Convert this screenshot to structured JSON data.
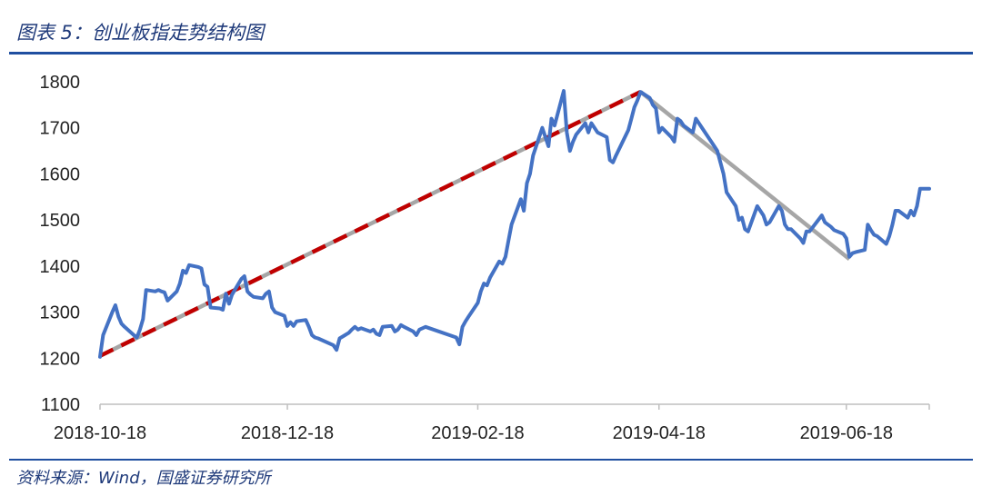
{
  "header": {
    "title": "图表 5：创业板指走势结构图"
  },
  "footer": {
    "source": "资料来源：Wind，国盛证券研究所"
  },
  "colors": {
    "series": "#4472c4",
    "trend_up": "#c00000",
    "trend_overlay": "#a6a6a6",
    "trend_down": "#a6a6a6",
    "rule": "#1f4fa0"
  },
  "chart_data": {
    "type": "line",
    "title": "",
    "xlabel": "",
    "ylabel": "",
    "ylim": [
      1100,
      1800
    ],
    "yticks": [
      1100,
      1200,
      1300,
      1400,
      1500,
      1600,
      1700,
      1800
    ],
    "xticks": [
      "2018-10-18",
      "2018-12-18",
      "2019-02-18",
      "2019-04-18",
      "2019-06-18"
    ],
    "xlim": [
      "2018-10-18",
      "2019-07-15"
    ],
    "grid": false,
    "legend": "none",
    "series": [
      {
        "values": [
          [
            "2018-10-18",
            1203
          ],
          [
            "2018-10-19",
            1250
          ],
          [
            "2018-10-22",
            1300
          ],
          [
            "2018-10-23",
            1315
          ],
          [
            "2018-10-24",
            1290
          ],
          [
            "2018-10-25",
            1275
          ],
          [
            "2018-10-26",
            1268
          ],
          [
            "2018-10-29",
            1250
          ],
          [
            "2018-10-30",
            1245
          ],
          [
            "2018-10-31",
            1262
          ],
          [
            "2018-11-01",
            1285
          ],
          [
            "2018-11-02",
            1348
          ],
          [
            "2018-11-05",
            1345
          ],
          [
            "2018-11-06",
            1348
          ],
          [
            "2018-11-07",
            1345
          ],
          [
            "2018-11-08",
            1343
          ],
          [
            "2018-11-09",
            1325
          ],
          [
            "2018-11-12",
            1345
          ],
          [
            "2018-11-13",
            1362
          ],
          [
            "2018-11-14",
            1390
          ],
          [
            "2018-11-15",
            1385
          ],
          [
            "2018-11-16",
            1402
          ],
          [
            "2018-11-19",
            1398
          ],
          [
            "2018-11-20",
            1395
          ],
          [
            "2018-11-21",
            1360
          ],
          [
            "2018-11-22",
            1355
          ],
          [
            "2018-11-23",
            1310
          ],
          [
            "2018-11-26",
            1308
          ],
          [
            "2018-11-27",
            1305
          ],
          [
            "2018-11-28",
            1340
          ],
          [
            "2018-11-29",
            1318
          ],
          [
            "2018-11-30",
            1338
          ],
          [
            "2018-12-03",
            1372
          ],
          [
            "2018-12-04",
            1378
          ],
          [
            "2018-12-05",
            1345
          ],
          [
            "2018-12-06",
            1338
          ],
          [
            "2018-12-07",
            1333
          ],
          [
            "2018-12-10",
            1330
          ],
          [
            "2018-12-11",
            1340
          ],
          [
            "2018-12-12",
            1345
          ],
          [
            "2018-12-13",
            1310
          ],
          [
            "2018-12-14",
            1300
          ],
          [
            "2018-12-17",
            1292
          ],
          [
            "2018-12-18",
            1270
          ],
          [
            "2018-12-19",
            1278
          ],
          [
            "2018-12-20",
            1270
          ],
          [
            "2018-12-21",
            1280
          ],
          [
            "2018-12-24",
            1283
          ],
          [
            "2018-12-25",
            1268
          ],
          [
            "2018-12-26",
            1250
          ],
          [
            "2018-12-27",
            1245
          ],
          [
            "2018-12-28",
            1243
          ],
          [
            "2019-01-02",
            1228
          ],
          [
            "2019-01-03",
            1218
          ],
          [
            "2019-01-04",
            1243
          ],
          [
            "2019-01-07",
            1255
          ],
          [
            "2019-01-08",
            1262
          ],
          [
            "2019-01-09",
            1268
          ],
          [
            "2019-01-10",
            1262
          ],
          [
            "2019-01-11",
            1265
          ],
          [
            "2019-01-14",
            1258
          ],
          [
            "2019-01-15",
            1262
          ],
          [
            "2019-01-16",
            1253
          ],
          [
            "2019-01-17",
            1250
          ],
          [
            "2019-01-18",
            1268
          ],
          [
            "2019-01-21",
            1270
          ],
          [
            "2019-01-22",
            1258
          ],
          [
            "2019-01-23",
            1262
          ],
          [
            "2019-01-24",
            1272
          ],
          [
            "2019-01-25",
            1268
          ],
          [
            "2019-01-28",
            1258
          ],
          [
            "2019-01-29",
            1250
          ],
          [
            "2019-01-30",
            1262
          ],
          [
            "2019-01-31",
            1265
          ],
          [
            "2019-02-01",
            1268
          ],
          [
            "2019-02-11",
            1245
          ],
          [
            "2019-02-12",
            1230
          ],
          [
            "2019-02-13",
            1268
          ],
          [
            "2019-02-14",
            1280
          ],
          [
            "2019-02-15",
            1290
          ],
          [
            "2019-02-18",
            1320
          ],
          [
            "2019-02-19",
            1345
          ],
          [
            "2019-02-20",
            1362
          ],
          [
            "2019-02-21",
            1358
          ],
          [
            "2019-02-22",
            1375
          ],
          [
            "2019-02-25",
            1410
          ],
          [
            "2019-02-26",
            1405
          ],
          [
            "2019-02-27",
            1420
          ],
          [
            "2019-02-28",
            1455
          ],
          [
            "2019-03-01",
            1490
          ],
          [
            "2019-03-04",
            1545
          ],
          [
            "2019-03-05",
            1520
          ],
          [
            "2019-03-06",
            1580
          ],
          [
            "2019-03-07",
            1600
          ],
          [
            "2019-03-08",
            1640
          ],
          [
            "2019-03-11",
            1700
          ],
          [
            "2019-03-12",
            1680
          ],
          [
            "2019-03-13",
            1660
          ],
          [
            "2019-03-14",
            1720
          ],
          [
            "2019-03-15",
            1705
          ],
          [
            "2019-03-18",
            1780
          ],
          [
            "2019-03-19",
            1690
          ],
          [
            "2019-03-20",
            1650
          ],
          [
            "2019-03-21",
            1670
          ],
          [
            "2019-03-22",
            1685
          ],
          [
            "2019-03-25",
            1710
          ],
          [
            "2019-03-26",
            1690
          ],
          [
            "2019-03-27",
            1710
          ],
          [
            "2019-03-28",
            1700
          ],
          [
            "2019-03-29",
            1690
          ],
          [
            "2019-04-01",
            1680
          ],
          [
            "2019-04-02",
            1630
          ],
          [
            "2019-04-03",
            1625
          ],
          [
            "2019-04-04",
            1640
          ],
          [
            "2019-04-08",
            1695
          ],
          [
            "2019-04-09",
            1720
          ],
          [
            "2019-04-10",
            1745
          ],
          [
            "2019-04-11",
            1760
          ],
          [
            "2019-04-12",
            1778
          ],
          [
            "2019-04-15",
            1765
          ],
          [
            "2019-04-16",
            1750
          ],
          [
            "2019-04-17",
            1742
          ],
          [
            "2019-04-18",
            1690
          ],
          [
            "2019-04-19",
            1700
          ],
          [
            "2019-04-22",
            1680
          ],
          [
            "2019-04-23",
            1670
          ],
          [
            "2019-04-24",
            1720
          ],
          [
            "2019-04-25",
            1715
          ],
          [
            "2019-04-26",
            1705
          ],
          [
            "2019-04-29",
            1690
          ],
          [
            "2019-04-30",
            1720
          ],
          [
            "2019-05-06",
            1660
          ],
          [
            "2019-05-07",
            1650
          ],
          [
            "2019-05-08",
            1625
          ],
          [
            "2019-05-09",
            1600
          ],
          [
            "2019-05-10",
            1560
          ],
          [
            "2019-05-13",
            1530
          ],
          [
            "2019-05-14",
            1500
          ],
          [
            "2019-05-15",
            1505
          ],
          [
            "2019-05-16",
            1480
          ],
          [
            "2019-05-17",
            1475
          ],
          [
            "2019-05-20",
            1530
          ],
          [
            "2019-05-21",
            1520
          ],
          [
            "2019-05-22",
            1510
          ],
          [
            "2019-05-23",
            1490
          ],
          [
            "2019-05-24",
            1495
          ],
          [
            "2019-05-27",
            1530
          ],
          [
            "2019-05-28",
            1520
          ],
          [
            "2019-05-29",
            1490
          ],
          [
            "2019-05-30",
            1480
          ],
          [
            "2019-05-31",
            1480
          ],
          [
            "2019-06-03",
            1460
          ],
          [
            "2019-06-04",
            1450
          ],
          [
            "2019-06-05",
            1475
          ],
          [
            "2019-06-06",
            1475
          ],
          [
            "2019-06-10",
            1510
          ],
          [
            "2019-06-11",
            1495
          ],
          [
            "2019-06-12",
            1490
          ],
          [
            "2019-06-13",
            1485
          ],
          [
            "2019-06-14",
            1478
          ],
          [
            "2019-06-17",
            1470
          ],
          [
            "2019-06-18",
            1460
          ],
          [
            "2019-06-19",
            1420
          ],
          [
            "2019-06-20",
            1428
          ],
          [
            "2019-06-21",
            1430
          ],
          [
            "2019-06-24",
            1435
          ],
          [
            "2019-06-25",
            1490
          ],
          [
            "2019-06-26",
            1478
          ],
          [
            "2019-06-27",
            1468
          ],
          [
            "2019-06-28",
            1465
          ],
          [
            "2019-07-01",
            1448
          ],
          [
            "2019-07-02",
            1465
          ],
          [
            "2019-07-03",
            1490
          ],
          [
            "2019-07-04",
            1520
          ],
          [
            "2019-07-05",
            1520
          ],
          [
            "2019-07-08",
            1505
          ],
          [
            "2019-07-09",
            1520
          ],
          [
            "2019-07-10",
            1510
          ],
          [
            "2019-07-11",
            1530
          ],
          [
            "2019-07-12",
            1568
          ],
          [
            "2019-07-15",
            1568
          ]
        ]
      }
    ],
    "trendlines": [
      {
        "style": "dashed",
        "points": [
          [
            "2018-10-18",
            1205
          ],
          [
            "2019-04-12",
            1778
          ]
        ]
      },
      {
        "style": "solid",
        "points": [
          [
            "2019-04-12",
            1778
          ],
          [
            "2019-06-19",
            1415
          ]
        ]
      }
    ]
  }
}
